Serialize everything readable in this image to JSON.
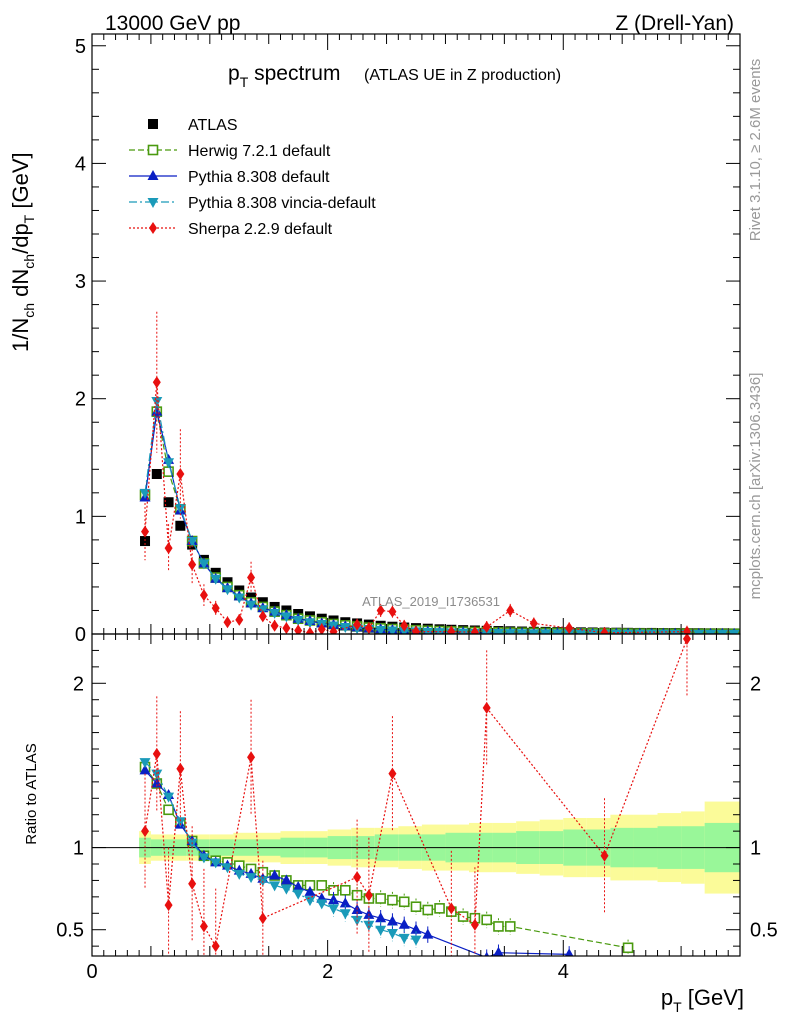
{
  "header": {
    "left": "13000 GeV pp",
    "right": "Z (Drell-Yan)"
  },
  "side_labels": {
    "top": "Rivet 3.1.10, ≥ 2.6M events",
    "bottom": "mcplots.cern.ch [arXiv:1306.3436]"
  },
  "watermark": "ATLAS_2019_I1736531",
  "chart_data": [
    {
      "type": "scatter",
      "panel": "main",
      "title": "p_T spectrum",
      "title_main": "p",
      "title_sub": "T",
      "title_rest": " spectrum",
      "title_paren": "(ATLAS UE in Z production)",
      "ylabel": "1/N_ch dN_ch/dp_T [GeV]",
      "xlim": [
        0,
        5.5
      ],
      "ylim": [
        0,
        5.1
      ],
      "yticks": [
        "0",
        "1",
        "2",
        "3",
        "4",
        "5"
      ],
      "legend_position": "top-left",
      "series": [
        {
          "name": "ATLAS",
          "color": "#000000",
          "marker": "square",
          "x": [
            0.45,
            0.55,
            0.65,
            0.75,
            0.85,
            0.95,
            1.05,
            1.15,
            1.25,
            1.35,
            1.45,
            1.55,
            1.65,
            1.75,
            1.85,
            1.95,
            2.05,
            2.15,
            2.25,
            2.35,
            2.45,
            2.55,
            2.65,
            2.75,
            2.85,
            2.95,
            3.05,
            3.15,
            3.25,
            3.35,
            3.45,
            3.55,
            3.65,
            3.75,
            3.85,
            3.95,
            4.05,
            4.15,
            4.25,
            4.35,
            4.45,
            4.55,
            4.65,
            4.75,
            4.85,
            4.95,
            5.05,
            5.15,
            5.25,
            5.35,
            5.45
          ],
          "y": [
            0.79,
            1.36,
            1.12,
            0.92,
            0.76,
            0.63,
            0.52,
            0.44,
            0.37,
            0.31,
            0.27,
            0.23,
            0.2,
            0.17,
            0.15,
            0.13,
            0.115,
            0.1,
            0.09,
            0.08,
            0.07,
            0.062,
            0.055,
            0.05,
            0.045,
            0.04,
            0.036,
            0.033,
            0.03,
            0.027,
            0.025,
            0.023,
            0.021,
            0.019,
            0.018,
            0.016,
            0.015,
            0.014,
            0.013,
            0.012,
            0.011,
            0.01,
            0.009,
            0.009,
            0.008,
            0.008,
            0.007,
            0.007,
            0.006,
            0.006,
            0.005
          ]
        },
        {
          "name": "Herwig 7.2.1 default",
          "color": "#4a9a0f",
          "marker": "open-square",
          "dash": "6,3",
          "x": [
            0.45,
            0.55,
            0.65,
            0.75,
            0.85,
            0.95,
            1.05,
            1.15,
            1.25,
            1.35,
            1.45,
            1.55,
            1.65,
            1.75,
            1.85,
            1.95,
            2.05,
            2.15,
            2.25,
            2.35,
            2.45,
            2.55,
            2.65,
            2.75,
            2.85,
            2.95,
            3.05,
            3.15,
            3.25,
            3.35,
            3.45,
            3.55,
            3.65,
            3.75,
            3.85,
            3.95,
            4.05,
            4.15,
            4.25,
            4.35,
            4.45,
            4.55,
            4.65,
            4.75,
            4.85,
            4.95,
            5.05,
            5.15,
            5.25,
            5.35,
            5.45
          ],
          "y": [
            1.18,
            1.89,
            1.38,
            1.06,
            0.79,
            0.6,
            0.48,
            0.4,
            0.33,
            0.27,
            0.23,
            0.19,
            0.16,
            0.13,
            0.115,
            0.1,
            0.085,
            0.074,
            0.064,
            0.055,
            0.048,
            0.042,
            0.037,
            0.032,
            0.028,
            0.025,
            0.022,
            0.019,
            0.017,
            0.015,
            0.013,
            0.012,
            0.011,
            0.01,
            0.009,
            0.008,
            0.007,
            0.006,
            0.006,
            0.005,
            0.005,
            0.004,
            0.004,
            0.003,
            0.003,
            0.003,
            0.003,
            0.002,
            0.002,
            0.002,
            0.002
          ]
        },
        {
          "name": "Pythia 8.308 default",
          "color": "#0a1fc4",
          "marker": "triangle-up",
          "x": [
            0.45,
            0.55,
            0.65,
            0.75,
            0.85,
            0.95,
            1.05,
            1.15,
            1.25,
            1.35,
            1.45,
            1.55,
            1.65,
            1.75,
            1.85,
            1.95,
            2.05,
            2.15,
            2.25,
            2.35,
            2.45,
            2.55,
            2.65,
            2.75,
            2.85,
            2.95,
            3.05,
            3.15,
            3.25,
            3.35,
            3.45,
            3.55,
            3.65,
            3.75,
            3.85,
            3.95,
            4.05,
            4.15,
            4.25,
            4.35,
            4.45,
            4.55,
            4.65,
            4.75,
            4.85,
            4.95,
            5.05,
            5.15,
            5.25,
            5.35,
            5.45
          ],
          "y": [
            1.16,
            1.89,
            1.48,
            1.05,
            0.79,
            0.6,
            0.47,
            0.39,
            0.32,
            0.26,
            0.22,
            0.19,
            0.16,
            0.13,
            0.11,
            0.09,
            0.078,
            0.066,
            0.056,
            0.047,
            0.04,
            0.034,
            0.029,
            0.025,
            0.021,
            0.018,
            0.016,
            0.014,
            0.012,
            0.01,
            0.009,
            0.008,
            0.007,
            0.006,
            0.005,
            0.005,
            0.004,
            0.004,
            0.003,
            0.003,
            0.003,
            0.002,
            0.002,
            0.002,
            0.002,
            0.002,
            0.001,
            0.001,
            0.001,
            0.001,
            0.001
          ]
        },
        {
          "name": "Pythia 8.308 vincia-default",
          "color": "#1a9ab9",
          "marker": "triangle-down",
          "dash": "8,3,2,3",
          "x": [
            0.45,
            0.55,
            0.65,
            0.75,
            0.85,
            0.95,
            1.05,
            1.15,
            1.25,
            1.35,
            1.45,
            1.55,
            1.65,
            1.75,
            1.85,
            1.95,
            2.05,
            2.15,
            2.25,
            2.35,
            2.45,
            2.55,
            2.65,
            2.75,
            2.85,
            2.95,
            3.05,
            3.15,
            3.25,
            3.35,
            3.45,
            3.55,
            3.65,
            3.75,
            3.85,
            3.95,
            4.05,
            4.15,
            4.25,
            4.35,
            4.45,
            4.55,
            4.65,
            4.75,
            4.85,
            4.95,
            5.05,
            5.15,
            5.25,
            5.35,
            5.45
          ],
          "y": [
            1.2,
            1.98,
            1.46,
            1.07,
            0.79,
            0.6,
            0.47,
            0.38,
            0.31,
            0.25,
            0.21,
            0.18,
            0.15,
            0.12,
            0.1,
            0.085,
            0.072,
            0.06,
            0.05,
            0.042,
            0.035,
            0.03,
            0.026,
            0.022,
            0.019,
            0.016,
            0.014,
            0.012,
            0.01,
            0.009,
            0.008,
            0.007,
            0.006,
            0.005,
            0.005,
            0.004,
            0.004,
            0.003,
            0.003,
            0.003,
            0.002,
            0.002,
            0.002,
            0.002,
            0.002,
            0.001,
            0.001,
            0.001,
            0.001,
            0.001,
            0.001
          ]
        },
        {
          "name": "Sherpa 2.2.9 default",
          "color": "#e8100f",
          "marker": "diamond",
          "dash": "2,2",
          "x": [
            0.45,
            0.55,
            0.65,
            0.75,
            0.85,
            0.95,
            1.05,
            1.15,
            1.25,
            1.35,
            1.45,
            1.55,
            1.65,
            1.75,
            1.85,
            1.95,
            2.05,
            2.25,
            2.35,
            2.45,
            2.55,
            2.65,
            2.75,
            3.05,
            3.25,
            3.35,
            3.55,
            3.75,
            4.05,
            4.35,
            5.05
          ],
          "y": [
            0.87,
            2.14,
            0.73,
            1.36,
            0.59,
            0.33,
            0.22,
            0.1,
            0.12,
            0.48,
            0.15,
            0.07,
            0.05,
            0.03,
            0.01,
            0.04,
            0.02,
            0.08,
            0.05,
            0.2,
            0.19,
            0.07,
            0.02,
            0.02,
            0.015,
            0.06,
            0.2,
            0.09,
            0.05,
            0.01,
            0.02
          ]
        }
      ]
    },
    {
      "type": "scatter",
      "panel": "ratio",
      "ylabel": "Ratio to ATLAS",
      "xlabel": "p_T [GeV]",
      "xlabel_main": "p",
      "xlabel_sub": "T",
      "xlabel_rest": " [GeV]",
      "xlim": [
        0,
        5.5
      ],
      "ylim": [
        0.34,
        2.3
      ],
      "yticks": [
        "0.5",
        "1",
        "2"
      ],
      "xticks": [
        "0",
        "2",
        "4"
      ],
      "bands": {
        "x_edges": [
          0.4,
          0.5,
          0.6,
          0.7,
          0.8,
          0.9,
          1.0,
          1.2,
          1.4,
          1.6,
          1.8,
          2.0,
          2.2,
          2.4,
          2.6,
          2.8,
          3.0,
          3.2,
          3.4,
          3.6,
          3.8,
          4.0,
          4.2,
          4.4,
          4.6,
          4.8,
          5.0,
          5.2,
          5.5
        ],
        "green_half_width": [
          0.06,
          0.05,
          0.05,
          0.05,
          0.05,
          0.05,
          0.05,
          0.05,
          0.05,
          0.06,
          0.06,
          0.07,
          0.07,
          0.08,
          0.08,
          0.08,
          0.09,
          0.09,
          0.09,
          0.1,
          0.1,
          0.11,
          0.11,
          0.12,
          0.12,
          0.13,
          0.13,
          0.15
        ],
        "yellow_half_width": [
          0.1,
          0.08,
          0.08,
          0.08,
          0.08,
          0.08,
          0.08,
          0.09,
          0.09,
          0.1,
          0.1,
          0.11,
          0.12,
          0.12,
          0.13,
          0.14,
          0.14,
          0.15,
          0.15,
          0.16,
          0.17,
          0.18,
          0.18,
          0.2,
          0.2,
          0.21,
          0.22,
          0.28
        ],
        "green": "#99f799",
        "yellow": "#fbfb99"
      },
      "series": [
        {
          "name": "Herwig 7.2.1 default",
          "x": [
            0.45,
            0.55,
            0.65,
            0.75,
            0.85,
            0.95,
            1.05,
            1.15,
            1.25,
            1.35,
            1.45,
            1.55,
            1.65,
            1.75,
            1.85,
            1.95,
            2.05,
            2.15,
            2.25,
            2.35,
            2.45,
            2.55,
            2.65,
            2.75,
            2.85,
            2.95,
            3.05,
            3.15,
            3.25,
            3.35,
            3.45,
            3.55,
            4.55
          ],
          "y": [
            1.49,
            1.39,
            1.23,
            1.15,
            1.04,
            0.95,
            0.92,
            0.91,
            0.89,
            0.87,
            0.85,
            0.83,
            0.8,
            0.77,
            0.77,
            0.77,
            0.74,
            0.74,
            0.71,
            0.69,
            0.69,
            0.68,
            0.67,
            0.64,
            0.62,
            0.63,
            0.61,
            0.58,
            0.57,
            0.56,
            0.52,
            0.52,
            0.39
          ]
        },
        {
          "name": "Pythia 8.308 default",
          "x": [
            0.45,
            0.55,
            0.65,
            0.75,
            0.85,
            0.95,
            1.05,
            1.15,
            1.25,
            1.35,
            1.45,
            1.55,
            1.65,
            1.75,
            1.85,
            1.95,
            2.05,
            2.15,
            2.25,
            2.35,
            2.45,
            2.55,
            2.65,
            2.75,
            2.85,
            3.35,
            3.45,
            4.05
          ],
          "y": [
            1.47,
            1.39,
            1.32,
            1.14,
            1.04,
            0.95,
            0.91,
            0.89,
            0.86,
            0.84,
            0.81,
            0.83,
            0.8,
            0.76,
            0.73,
            0.69,
            0.68,
            0.66,
            0.62,
            0.59,
            0.57,
            0.55,
            0.53,
            0.5,
            0.47,
            0.33,
            0.36,
            0.35
          ]
        },
        {
          "name": "Pythia 8.308 vincia-default",
          "x": [
            0.45,
            0.55,
            0.65,
            0.75,
            0.85,
            0.95,
            1.05,
            1.15,
            1.25,
            1.35,
            1.45,
            1.55,
            1.65,
            1.75,
            1.85,
            1.95,
            2.05,
            2.15,
            2.25,
            2.35,
            2.45,
            2.55,
            2.65,
            2.75
          ],
          "y": [
            1.52,
            1.45,
            1.31,
            1.16,
            1.03,
            0.94,
            0.91,
            0.88,
            0.84,
            0.82,
            0.8,
            0.77,
            0.75,
            0.72,
            0.68,
            0.66,
            0.63,
            0.6,
            0.56,
            0.53,
            0.5,
            0.48,
            0.45,
            0.44
          ]
        },
        {
          "name": "Sherpa 2.2.9 default",
          "x": [
            0.45,
            0.55,
            0.65,
            0.75,
            0.85,
            0.95,
            1.05,
            1.35,
            1.45,
            2.25,
            2.35,
            2.55,
            3.05,
            3.25,
            3.35,
            4.35,
            5.05
          ],
          "y": [
            1.1,
            1.57,
            0.65,
            1.48,
            0.78,
            0.52,
            0.4,
            1.55,
            0.57,
            0.82,
            0.71,
            1.45,
            0.63,
            0.53,
            1.85,
            0.95,
            2.27
          ]
        }
      ]
    }
  ]
}
